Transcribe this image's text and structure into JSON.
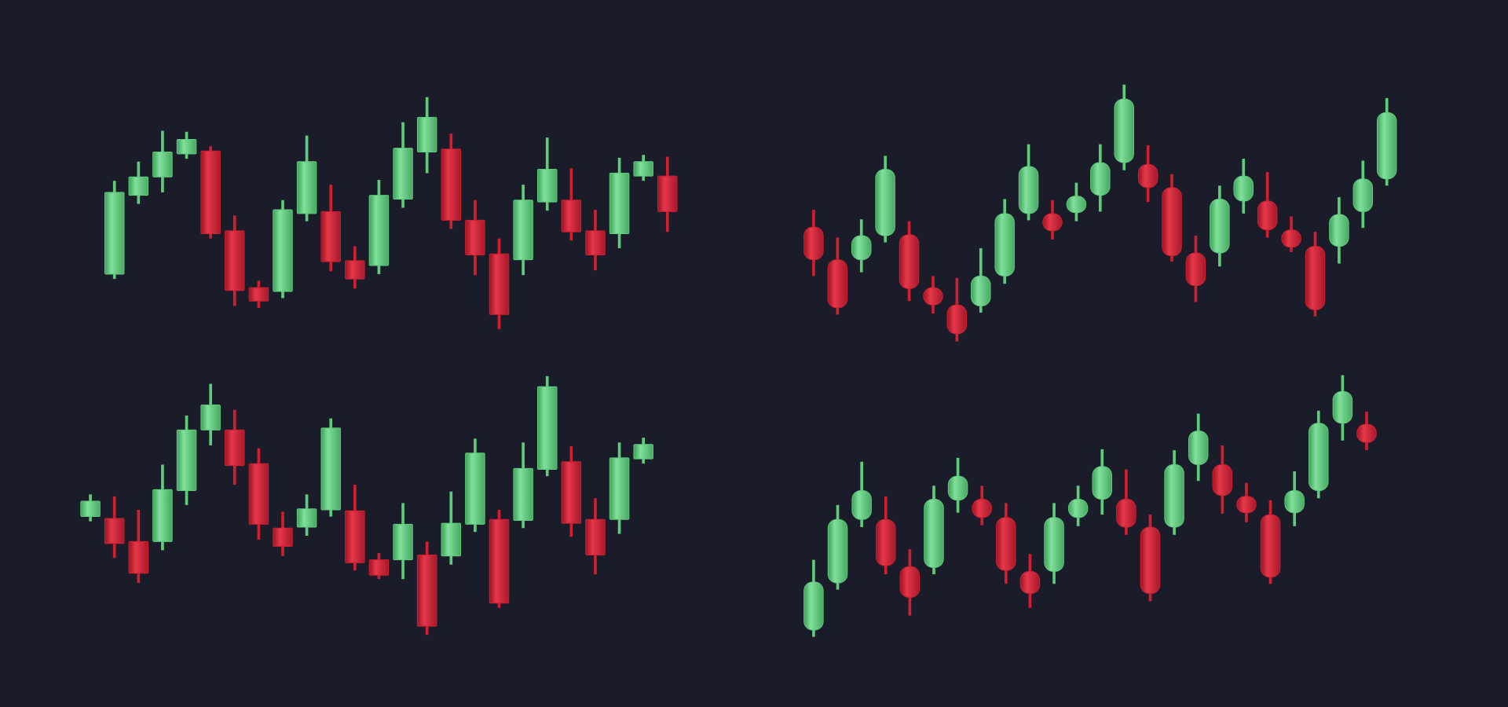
{
  "chart_data": [
    {
      "type": "candlestick",
      "ylim": [
        0,
        735
      ],
      "up_color": "#5fcb7c",
      "down_color": "#cf1f30",
      "rounded": false,
      "open": [
        450,
        532,
        551,
        575,
        578,
        495,
        436,
        432,
        513,
        515,
        464,
        459,
        528,
        577,
        580,
        506,
        471,
        465,
        525,
        527,
        495,
        492,
        552,
        552
      ],
      "high": [
        547,
        567,
        599,
        598,
        583,
        511,
        443,
        527,
        594,
        543,
        479,
        548,
        608,
        634,
        596,
        527,
        487,
        543,
        592,
        560,
        517,
        571,
        574,
        572
      ],
      "low": [
        445,
        523,
        535,
        570,
        487,
        417,
        415,
        425,
        505,
        453,
        435,
        450,
        519,
        555,
        497,
        449,
        393,
        449,
        516,
        485,
        454,
        477,
        547,
        494
      ],
      "close": [
        535,
        551,
        577,
        590,
        492,
        433,
        422,
        517,
        567,
        463,
        445,
        532,
        581,
        613,
        506,
        470,
        408,
        527,
        559,
        494,
        470,
        555,
        567,
        515
      ]
    },
    {
      "type": "candlestick",
      "ylim": [
        0,
        735
      ],
      "up_color": "#5fcb7c",
      "down_color": "#cf1f30",
      "rounded": true,
      "open": [
        499,
        465,
        465,
        490,
        491,
        436,
        418,
        417,
        448,
        513,
        513,
        514,
        532,
        566,
        564,
        540,
        472,
        472,
        526,
        526,
        496,
        479,
        479,
        515,
        549
      ],
      "high": [
        517,
        488,
        507,
        573,
        505,
        448,
        446,
        477,
        528,
        585,
        527,
        545,
        585,
        647,
        584,
        554,
        490,
        542,
        570,
        556,
        510,
        494,
        530,
        568,
        633
      ],
      "low": [
        448,
        408,
        452,
        483,
        422,
        409,
        380,
        410,
        440,
        506,
        486,
        505,
        515,
        558,
        525,
        463,
        421,
        458,
        513,
        488,
        473,
        406,
        461,
        498,
        542
      ],
      "close": [
        465,
        415,
        490,
        559,
        435,
        418,
        388,
        448,
        513,
        562,
        495,
        531,
        566,
        632,
        540,
        469,
        438,
        528,
        552,
        496,
        478,
        413,
        512,
        549,
        618
      ]
    },
    {
      "type": "candlestick",
      "ylim": [
        0,
        735
      ],
      "up_color": "#5fcb7c",
      "down_color": "#cf1f30",
      "rounded": false,
      "open": [
        198,
        196,
        172,
        172,
        225,
        288,
        288,
        253,
        186,
        187,
        205,
        204,
        153,
        153,
        158,
        157,
        190,
        195,
        194,
        247,
        255,
        195,
        195,
        258
      ],
      "high": [
        221,
        219,
        205,
        252,
        303,
        336,
        309,
        269,
        203,
        221,
        300,
        231,
        160,
        212,
        172,
        224,
        279,
        205,
        275,
        344,
        271,
        217,
        275,
        280
      ],
      "low": [
        193,
        155,
        129,
        163,
        210,
        272,
        231,
        174,
        157,
        178,
        198,
        142,
        133,
        133,
        75,
        148,
        182,
        103,
        186,
        240,
        177,
        138,
        180,
        253
      ],
      "close": [
        214,
        170,
        139,
        226,
        288,
        314,
        251,
        190,
        167,
        206,
        290,
        150,
        137,
        190,
        84,
        191,
        264,
        108,
        248,
        333,
        191,
        158,
        259,
        273
      ]
    },
    {
      "type": "candlestick",
      "ylim": [
        0,
        735
      ],
      "up_color": "#5fcb7c",
      "down_color": "#cf1f30",
      "rounded": true,
      "open": [
        80,
        129,
        195,
        195,
        146,
        145,
        215,
        216,
        197,
        141,
        141,
        197,
        216,
        216,
        187,
        187,
        252,
        252,
        219,
        200,
        202,
        225,
        295,
        294
      ],
      "high": [
        153,
        210,
        255,
        219,
        164,
        230,
        259,
        230,
        212,
        159,
        212,
        230,
        268,
        247,
        200,
        267,
        305,
        272,
        233,
        215,
        245,
        308,
        345,
        307
      ],
      "low": [
        73,
        122,
        187,
        138,
        95,
        138,
        202,
        189,
        128,
        103,
        128,
        188,
        200,
        179,
        110,
        179,
        235,
        201,
        192,
        128,
        188,
        217,
        277,
        267
      ],
      "close": [
        130,
        195,
        225,
        147,
        114,
        216,
        240,
        197,
        142,
        118,
        197,
        216,
        250,
        187,
        118,
        252,
        287,
        220,
        202,
        135,
        225,
        295,
        328,
        275
      ]
    }
  ]
}
